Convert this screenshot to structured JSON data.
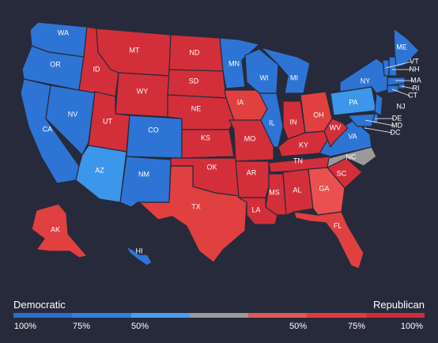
{
  "legend": {
    "left_title": "Democratic",
    "right_title": "Republican",
    "segments": [
      "#2a6ed0",
      "#2f80e0",
      "#4aa0f0",
      "#9a9a9a",
      "#e05858",
      "#e03c3c",
      "#d02c36"
    ],
    "ticks": [
      "100%",
      "75%",
      "50%",
      "50%",
      "75%",
      "100%"
    ]
  },
  "colors": {
    "dem_strong": "#2e74d4",
    "dem_lean": "#3c96ea",
    "rep_strong": "#d32f3a",
    "rep_mid": "#e04040",
    "rep_lean": "#ea5050",
    "tossup": "#9a9a9a"
  },
  "states": [
    {
      "abbr": "WA",
      "fill": "dem_strong"
    },
    {
      "abbr": "OR",
      "fill": "dem_strong"
    },
    {
      "abbr": "CA",
      "fill": "dem_strong"
    },
    {
      "abbr": "NV",
      "fill": "dem_strong"
    },
    {
      "abbr": "ID",
      "fill": "rep_strong"
    },
    {
      "abbr": "MT",
      "fill": "rep_strong"
    },
    {
      "abbr": "WY",
      "fill": "rep_strong"
    },
    {
      "abbr": "UT",
      "fill": "rep_strong"
    },
    {
      "abbr": "AZ",
      "fill": "dem_lean"
    },
    {
      "abbr": "CO",
      "fill": "dem_strong"
    },
    {
      "abbr": "NM",
      "fill": "dem_strong"
    },
    {
      "abbr": "ND",
      "fill": "rep_strong"
    },
    {
      "abbr": "SD",
      "fill": "rep_strong"
    },
    {
      "abbr": "NE",
      "fill": "rep_strong"
    },
    {
      "abbr": "KS",
      "fill": "rep_strong"
    },
    {
      "abbr": "OK",
      "fill": "rep_strong"
    },
    {
      "abbr": "TX",
      "fill": "rep_mid"
    },
    {
      "abbr": "MN",
      "fill": "dem_strong"
    },
    {
      "abbr": "IA",
      "fill": "rep_mid"
    },
    {
      "abbr": "MO",
      "fill": "rep_strong"
    },
    {
      "abbr": "AR",
      "fill": "rep_strong"
    },
    {
      "abbr": "LA",
      "fill": "rep_strong"
    },
    {
      "abbr": "WI",
      "fill": "dem_strong"
    },
    {
      "abbr": "IL",
      "fill": "dem_strong"
    },
    {
      "abbr": "MI",
      "fill": "dem_strong"
    },
    {
      "abbr": "IN",
      "fill": "rep_strong"
    },
    {
      "abbr": "OH",
      "fill": "rep_mid"
    },
    {
      "abbr": "KY",
      "fill": "rep_strong"
    },
    {
      "abbr": "TN",
      "fill": "rep_strong"
    },
    {
      "abbr": "MS",
      "fill": "rep_strong"
    },
    {
      "abbr": "AL",
      "fill": "rep_strong"
    },
    {
      "abbr": "GA",
      "fill": "rep_lean"
    },
    {
      "abbr": "FL",
      "fill": "rep_mid"
    },
    {
      "abbr": "SC",
      "fill": "rep_strong"
    },
    {
      "abbr": "NC",
      "fill": "tossup"
    },
    {
      "abbr": "VA",
      "fill": "dem_strong"
    },
    {
      "abbr": "WV",
      "fill": "rep_strong"
    },
    {
      "abbr": "PA",
      "fill": "dem_lean"
    },
    {
      "abbr": "NY",
      "fill": "dem_strong"
    },
    {
      "abbr": "ME",
      "fill": "dem_strong"
    },
    {
      "abbr": "VT",
      "fill": "dem_strong"
    },
    {
      "abbr": "NH",
      "fill": "dem_strong"
    },
    {
      "abbr": "MA",
      "fill": "dem_strong"
    },
    {
      "abbr": "RI",
      "fill": "dem_strong"
    },
    {
      "abbr": "CT",
      "fill": "dem_strong"
    },
    {
      "abbr": "NJ",
      "fill": "dem_strong"
    },
    {
      "abbr": "DE",
      "fill": "dem_strong"
    },
    {
      "abbr": "MD",
      "fill": "dem_strong"
    },
    {
      "abbr": "DC",
      "fill": "dem_strong"
    },
    {
      "abbr": "AK",
      "fill": "rep_mid"
    },
    {
      "abbr": "HI",
      "fill": "dem_strong"
    }
  ]
}
